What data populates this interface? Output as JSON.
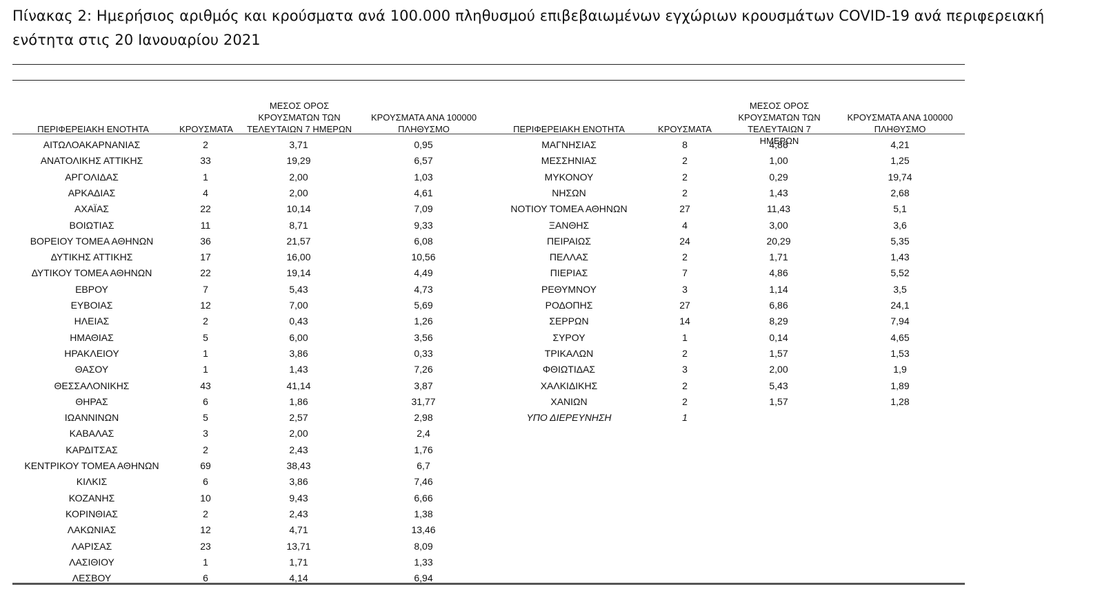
{
  "caption": "Πίνακας 2: Ημερήσιος αριθμός και κρούσματα ανά 100.000 πληθυσμού επιβεβαιωμένων εγχώριων κρουσμάτων COVID-19 ανά περιφερειακή ενότητα στις 20 Ιανουαρίου 2021",
  "left_headers": {
    "region": "ΠΕΡΙΦΕΡΕΙΑΚΗ ΕΝΟΤΗΤΑ",
    "cases": "ΚΡΟΥΣΜΑΤΑ",
    "avg7": "ΜΕΣΟΣ ΟΡΟΣ ΚΡΟΥΣΜΑΤΩΝ ΤΩΝ ΤΕΛΕΥΤΑΙΩΝ 7 ΗΜΕΡΩΝ",
    "per100k": "ΚΡΟΥΣΜΑΤΑ ΑΝΑ 100000 ΠΛΗΘΥΣΜΟ"
  },
  "right_headers": {
    "region": "ΠΕΡΙΦΕΡΕΙΑΚΗ ΕΝΟΤΗΤΑ",
    "cases": "ΚΡΟΥΣΜΑΤΑ",
    "avg7": "ΜΕΣΟΣ ΟΡΟΣ ΚΡΟΥΣΜΑΤΩΝ ΤΩΝ ΤΕΛΕΥΤΑΙΩΝ 7 ΗΜΕΡΩΝ",
    "per100k": "ΚΡΟΥΣΜΑΤΑ ΑΝΑ 100000 ΠΛΗΘΥΣΜΟ"
  },
  "left_rows": [
    [
      "ΑΙΤΩΛΟΑΚΑΡΝΑΝΙΑΣ",
      "2",
      "3,71",
      "0,95"
    ],
    [
      "ΑΝΑΤΟΛΙΚΗΣ ΑΤΤΙΚΗΣ",
      "33",
      "19,29",
      "6,57"
    ],
    [
      "ΑΡΓΟΛΙΔΑΣ",
      "1",
      "2,00",
      "1,03"
    ],
    [
      "ΑΡΚΑΔΙΑΣ",
      "4",
      "2,00",
      "4,61"
    ],
    [
      "ΑΧΑΪΑΣ",
      "22",
      "10,14",
      "7,09"
    ],
    [
      "ΒΟΙΩΤΙΑΣ",
      "11",
      "8,71",
      "9,33"
    ],
    [
      "ΒΟΡΕΙΟΥ ΤΟΜΕΑ ΑΘΗΝΩΝ",
      "36",
      "21,57",
      "6,08"
    ],
    [
      "ΔΥΤΙΚΗΣ ΑΤΤΙΚΗΣ",
      "17",
      "16,00",
      "10,56"
    ],
    [
      "ΔΥΤΙΚΟΥ ΤΟΜΕΑ ΑΘΗΝΩΝ",
      "22",
      "19,14",
      "4,49"
    ],
    [
      "ΕΒΡΟΥ",
      "7",
      "5,43",
      "4,73"
    ],
    [
      "ΕΥΒΟΙΑΣ",
      "12",
      "7,00",
      "5,69"
    ],
    [
      "ΗΛΕΙΑΣ",
      "2",
      "0,43",
      "1,26"
    ],
    [
      "ΗΜΑΘΙΑΣ",
      "5",
      "6,00",
      "3,56"
    ],
    [
      "ΗΡΑΚΛΕΙΟΥ",
      "1",
      "3,86",
      "0,33"
    ],
    [
      "ΘΑΣΟΥ",
      "1",
      "1,43",
      "7,26"
    ],
    [
      "ΘΕΣΣΑΛΟΝΙΚΗΣ",
      "43",
      "41,14",
      "3,87"
    ],
    [
      "ΘΗΡΑΣ",
      "6",
      "1,86",
      "31,77"
    ],
    [
      "ΙΩΑΝΝΙΝΩΝ",
      "5",
      "2,57",
      "2,98"
    ],
    [
      "ΚΑΒΑΛΑΣ",
      "3",
      "2,00",
      "2,4"
    ],
    [
      "ΚΑΡΔΙΤΣΑΣ",
      "2",
      "2,43",
      "1,76"
    ],
    [
      "ΚΕΝΤΡΙΚΟΥ ΤΟΜΕΑ ΑΘΗΝΩΝ",
      "69",
      "38,43",
      "6,7"
    ],
    [
      "ΚΙΛΚΙΣ",
      "6",
      "3,86",
      "7,46"
    ],
    [
      "ΚΟΖΑΝΗΣ",
      "10",
      "9,43",
      "6,66"
    ],
    [
      "ΚΟΡΙΝΘΙΑΣ",
      "2",
      "2,43",
      "1,38"
    ],
    [
      "ΛΑΚΩΝΙΑΣ",
      "12",
      "4,71",
      "13,46"
    ],
    [
      "ΛΑΡΙΣΑΣ",
      "23",
      "13,71",
      "8,09"
    ],
    [
      "ΛΑΣΙΘΙΟΥ",
      "1",
      "1,71",
      "1,33"
    ],
    [
      "ΛΕΣΒΟΥ",
      "6",
      "4,14",
      "6,94"
    ]
  ],
  "right_rows": [
    [
      "ΜΑΓΝΗΣΙΑΣ",
      "8",
      "4,86",
      "4,21"
    ],
    [
      "ΜΕΣΣΗΝΙΑΣ",
      "2",
      "1,00",
      "1,25"
    ],
    [
      "ΜΥΚΟΝΟΥ",
      "2",
      "0,29",
      "19,74"
    ],
    [
      "ΝΗΣΩΝ",
      "2",
      "1,43",
      "2,68"
    ],
    [
      "ΝΟΤΙΟΥ ΤΟΜΕΑ ΑΘΗΝΩΝ",
      "27",
      "11,43",
      "5,1"
    ],
    [
      "ΞΑΝΘΗΣ",
      "4",
      "3,00",
      "3,6"
    ],
    [
      "ΠΕΙΡΑΙΩΣ",
      "24",
      "20,29",
      "5,35"
    ],
    [
      "ΠΕΛΛΑΣ",
      "2",
      "1,71",
      "1,43"
    ],
    [
      "ΠΙΕΡΙΑΣ",
      "7",
      "4,86",
      "5,52"
    ],
    [
      "ΡΕΘΥΜΝΟΥ",
      "3",
      "1,14",
      "3,5"
    ],
    [
      "ΡΟΔΟΠΗΣ",
      "27",
      "6,86",
      "24,1"
    ],
    [
      "ΣΕΡΡΩΝ",
      "14",
      "8,29",
      "7,94"
    ],
    [
      "ΣΥΡΟΥ",
      "1",
      "0,14",
      "4,65"
    ],
    [
      "ΤΡΙΚΑΛΩΝ",
      "2",
      "1,57",
      "1,53"
    ],
    [
      "ΦΘΙΩΤΙΔΑΣ",
      "3",
      "2,00",
      "1,9"
    ],
    [
      "ΧΑΛΚΙΔΙΚΗΣ",
      "2",
      "5,43",
      "1,89"
    ],
    [
      "ΧΑΝΙΩΝ",
      "2",
      "1,57",
      "1,28"
    ],
    [
      "ΥΠΟ ΔΙΕΡΕΥΝΗΣΗ",
      "1",
      "",
      ""
    ]
  ]
}
